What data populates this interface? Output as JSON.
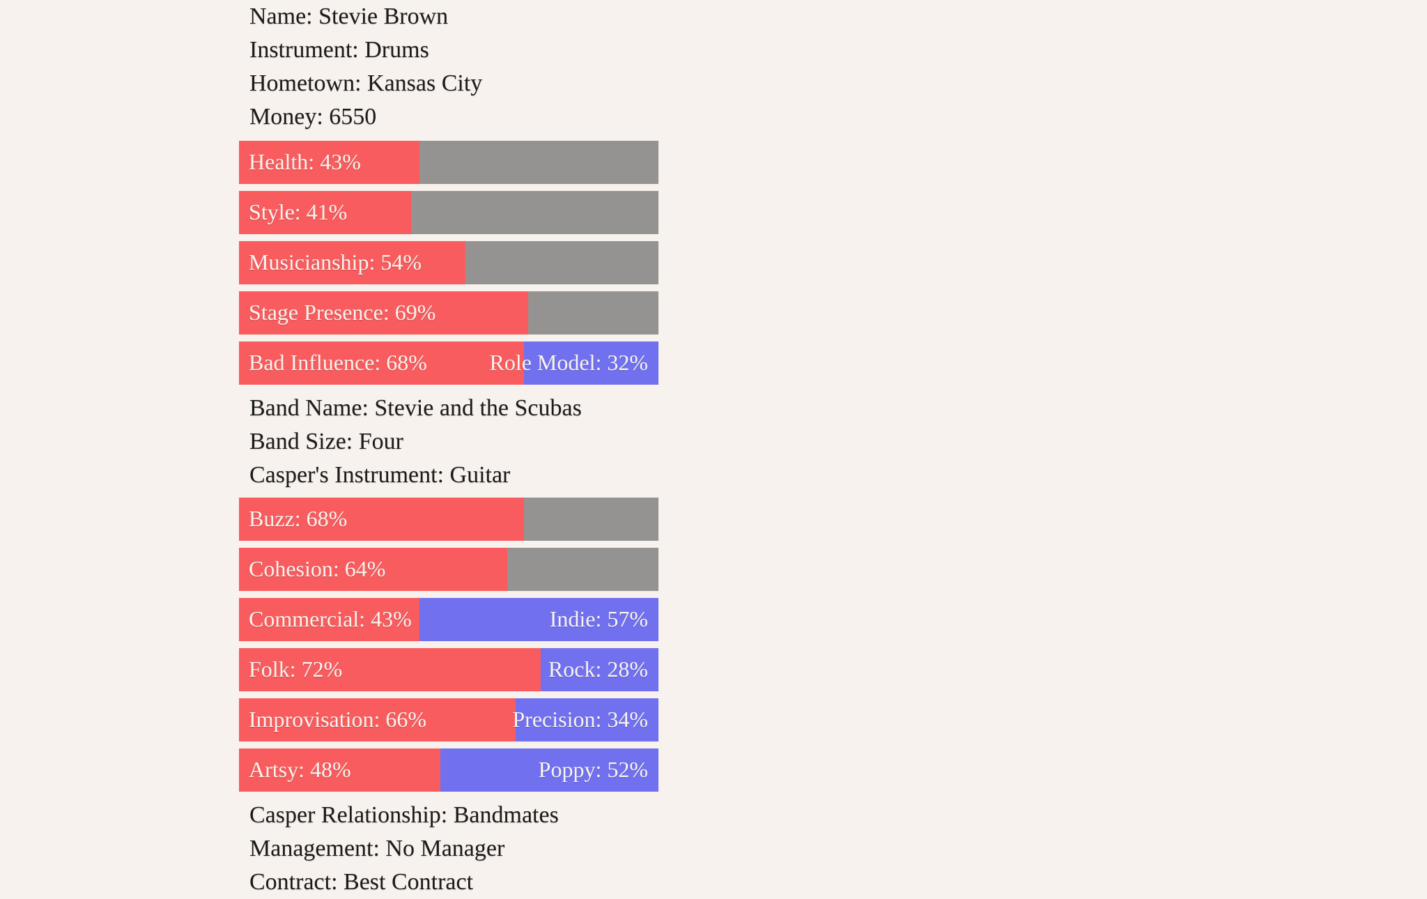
{
  "theme": {
    "bg": "#f7f2ed",
    "text": "#1c1b1a",
    "red": "#f95c5e",
    "gray": "#959391",
    "blue": "#7171f0",
    "bar_text": "#f8f4ef"
  },
  "profile": {
    "name": "Name: Stevie Brown",
    "instrument": "Instrument: Drums",
    "hometown": "Hometown: Kansas City",
    "money": "Money: 6550"
  },
  "member_stats": [
    {
      "left_label": "Health: 43%",
      "percent": 43,
      "right_label": "",
      "remainder": "gray"
    },
    {
      "left_label": "Style: 41%",
      "percent": 41,
      "right_label": "",
      "remainder": "gray"
    },
    {
      "left_label": "Musicianship: 54%",
      "percent": 54,
      "right_label": "",
      "remainder": "gray"
    },
    {
      "left_label": "Stage Presence: 69%",
      "percent": 69,
      "right_label": "",
      "remainder": "gray"
    },
    {
      "left_label": "Bad Influence: 68%",
      "percent": 68,
      "right_label": "Role Model: 32%",
      "remainder": "blue"
    }
  ],
  "band": {
    "name": "Band Name: Stevie and the Scubas",
    "size": "Band Size: Four",
    "casper_instrument": "Casper's Instrument: Guitar"
  },
  "band_stats": [
    {
      "left_label": "Buzz: 68%",
      "percent": 68,
      "right_label": "",
      "remainder": "gray"
    },
    {
      "left_label": "Cohesion: 64%",
      "percent": 64,
      "right_label": "",
      "remainder": "gray"
    },
    {
      "left_label": "Commercial: 43%",
      "percent": 43,
      "right_label": "Indie: 57%",
      "remainder": "blue"
    },
    {
      "left_label": "Folk: 72%",
      "percent": 72,
      "right_label": "Rock: 28%",
      "remainder": "blue"
    },
    {
      "left_label": "Improvisation: 66%",
      "percent": 66,
      "right_label": "Precision: 34%",
      "remainder": "blue"
    },
    {
      "left_label": "Artsy: 48%",
      "percent": 48,
      "right_label": "Poppy: 52%",
      "remainder": "blue"
    }
  ],
  "status": {
    "casper_relationship": "Casper Relationship: Bandmates",
    "management": "Management: No Manager",
    "contract": "Contract: Best Contract"
  }
}
